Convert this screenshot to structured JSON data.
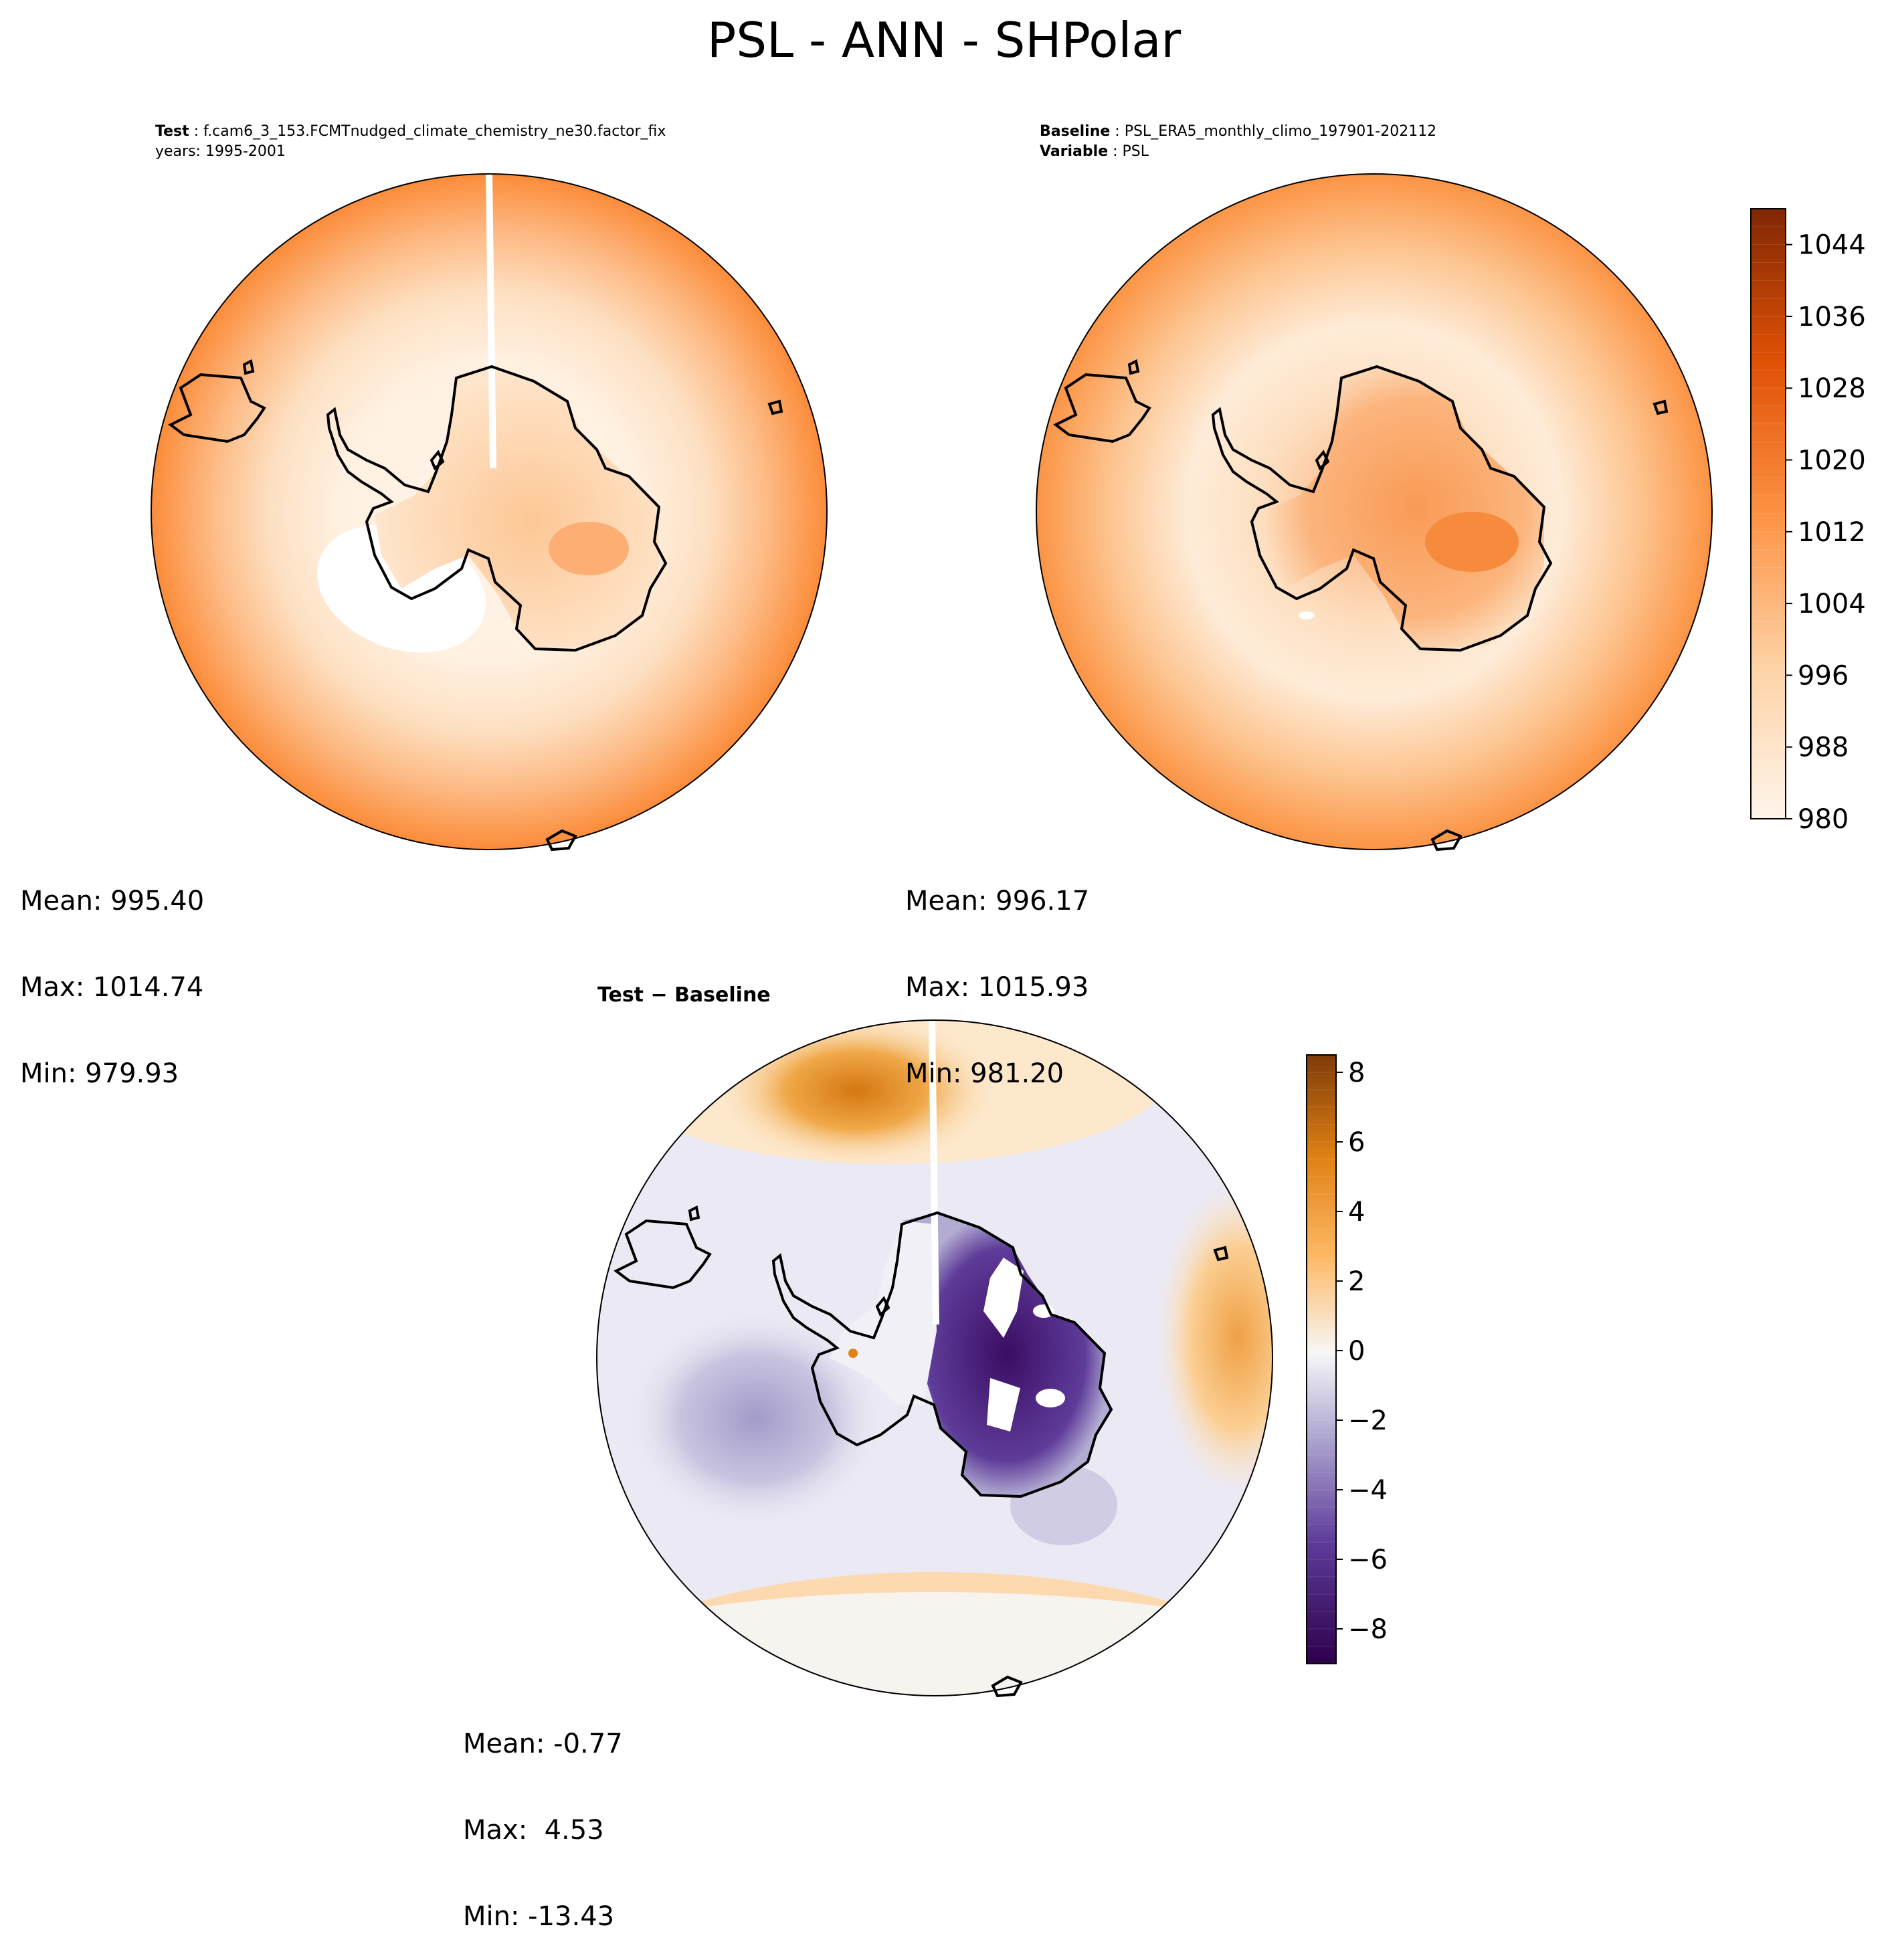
{
  "figure_title": "PSL - ANN - SHPolar",
  "panels": {
    "test": {
      "label": "Test",
      "case": "f.cam6_3_153.FCMTnudged_climate_chemistry_ne30.factor_fix",
      "years": "years: 1995-2001",
      "mean": "Mean: 995.40",
      "max": "Max: 1014.74",
      "min": "Min: 979.93"
    },
    "baseline": {
      "label": "Baseline",
      "case": "PSL_ERA5_monthly_climo_197901-202112",
      "variable_label": "Variable",
      "variable": "PSL",
      "mean": "Mean: 996.17",
      "max": "Max: 1015.93",
      "min": "Min: 981.20"
    },
    "diff": {
      "title_a": "Test",
      "title_sep": " − ",
      "title_b": "Baseline",
      "mean": "Mean: -0.77",
      "max": "Max:  4.53",
      "min": "Min: -13.43"
    }
  },
  "chart_data": [
    {
      "type": "heatmap",
      "panel": "colorbar-psl",
      "vmin": 980,
      "vmax": 1048,
      "levels": 34,
      "ticks": [
        980,
        988,
        996,
        1004,
        1012,
        1020,
        1028,
        1036,
        1044
      ],
      "tick_labels": [
        "980",
        "988",
        "996",
        "1004",
        "1012",
        "1020",
        "1028",
        "1036",
        "1044"
      ],
      "colormap": "Oranges",
      "colors": [
        "#fff5eb",
        "#fdd2a5",
        "#fd9243",
        "#df5005",
        "#7f2704"
      ]
    },
    {
      "type": "heatmap",
      "panel": "colorbar-diff",
      "vmin": -9,
      "vmax": 8.5,
      "levels": 35,
      "ticks": [
        -8,
        -6,
        -4,
        -2,
        0,
        2,
        4,
        6,
        8
      ],
      "tick_labels": [
        "−8",
        "−6",
        "−4",
        "−2",
        "0",
        "2",
        "4",
        "6",
        "8"
      ],
      "colormap": "PuOr_r",
      "colors": [
        "#2d004b",
        "#5e3c99",
        "#b2abd2",
        "#f7f7f7",
        "#fdb863",
        "#e08214",
        "#7f3b08"
      ]
    }
  ]
}
